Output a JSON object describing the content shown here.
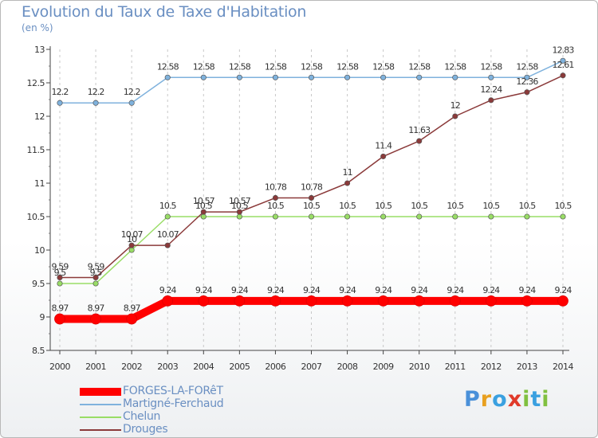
{
  "brand": {
    "letters": [
      "P",
      "r",
      "o",
      "x",
      "i",
      "t",
      "i"
    ],
    "colors": [
      "#4a90d9",
      "#e8a020",
      "#3aa0e0",
      "#e03a2a",
      "#80c040",
      "#3aa0e0",
      "#80c040"
    ]
  },
  "chart_data": {
    "type": "line",
    "title": "Evolution du Taux de Taxe d'Habitation",
    "ylabel": "(en %)",
    "xlabel": "",
    "ylim": [
      8.5,
      13
    ],
    "yticks": [
      "8.5",
      "9",
      "9.5",
      "10",
      "10.5",
      "11",
      "11.5",
      "12",
      "12.5",
      "13"
    ],
    "categories": [
      "2000",
      "2001",
      "2002",
      "2003",
      "2004",
      "2005",
      "2006",
      "2007",
      "2008",
      "2009",
      "2010",
      "2011",
      "2012",
      "2013",
      "2014"
    ],
    "series": [
      {
        "name": "FORGES-LA-FORêT",
        "color": "#ff0000",
        "values": [
          8.97,
          8.97,
          8.97,
          9.24,
          9.24,
          9.24,
          9.24,
          9.24,
          9.24,
          9.24,
          9.24,
          9.24,
          9.24,
          9.24,
          9.24
        ],
        "labels": [
          "8.97",
          "8.97",
          "8.97",
          "9.24",
          "9.24",
          "9.24",
          "9.24",
          "9.24",
          "9.24",
          "9.24",
          "9.24",
          "9.24",
          "9.24",
          "9.24",
          "9.24"
        ]
      },
      {
        "name": "Martigné-Ferchaud",
        "color": "#7fb2dd",
        "values": [
          12.2,
          12.2,
          12.2,
          12.58,
          12.58,
          12.58,
          12.58,
          12.58,
          12.58,
          12.58,
          12.58,
          12.58,
          12.58,
          12.58,
          12.83
        ],
        "labels": [
          "12.2",
          "12.2",
          "12.2",
          "12.58",
          "12.58",
          "12.58",
          "12.58",
          "12.58",
          "12.58",
          "12.58",
          "12.58",
          "12.58",
          "12.58",
          "12.58",
          "12.83"
        ]
      },
      {
        "name": "Chelun",
        "color": "#99dd66",
        "values": [
          9.5,
          9.5,
          10,
          10.5,
          10.5,
          10.5,
          10.5,
          10.5,
          10.5,
          10.5,
          10.5,
          10.5,
          10.5,
          10.5,
          10.5
        ],
        "labels": [
          "9.5",
          "9.5",
          "10",
          "10.5",
          "10.5",
          "10.5",
          "10.5",
          "10.5",
          "10.5",
          "10.5",
          "10.5",
          "10.5",
          "10.5",
          "10.5",
          "10.5"
        ]
      },
      {
        "name": "Drouges",
        "color": "#8b3a3a",
        "values": [
          9.59,
          9.59,
          10.07,
          10.07,
          10.57,
          10.57,
          10.78,
          10.78,
          11,
          11.4,
          11.63,
          12,
          12.24,
          12.36,
          12.61
        ],
        "labels": [
          "9.59",
          "9.59",
          "10.07",
          "10.07",
          "10.57",
          "10.57",
          "10.78",
          "10.78",
          "11",
          "11.4",
          "11.63",
          "12",
          "12.24",
          "12.36",
          "12.61"
        ]
      }
    ]
  }
}
